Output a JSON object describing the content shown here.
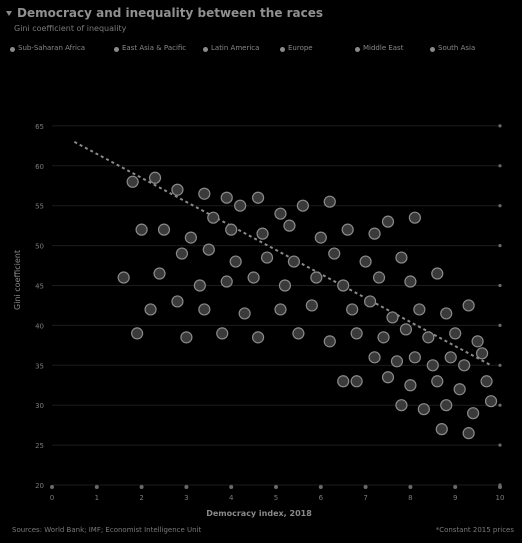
{
  "title": "Democracy and inequality between the races",
  "subtitle": "Gini coefficient of inequality",
  "legend": [
    "Sub-Saharan Africa",
    "East Asia & Pacific",
    "Latin America",
    "Europe",
    "Middle East",
    "South Asia"
  ],
  "footer": {
    "source": "Sources: World Bank; IMF; Economist Intelligence Unit",
    "note": "*Constant 2015 prices"
  },
  "chart_data": {
    "type": "scatter",
    "title": "Democracy and inequality between the races",
    "xlabel": "Democracy index, 2018",
    "ylabel": "Gini coefficient",
    "xlim": [
      0,
      10
    ],
    "ylim": [
      20,
      70
    ],
    "x_ticks": [
      "0",
      "1",
      "2",
      "3",
      "4",
      "5",
      "6",
      "7",
      "8",
      "9",
      "10"
    ],
    "y_ticks": [
      "20",
      "25",
      "30",
      "35",
      "40",
      "45",
      "50",
      "55",
      "60",
      "65"
    ],
    "trend": {
      "x": [
        0.5,
        9.8
      ],
      "y": [
        63,
        35
      ]
    },
    "points": [
      {
        "x": 1.8,
        "y": 58
      },
      {
        "x": 2.3,
        "y": 58.5
      },
      {
        "x": 2.8,
        "y": 57
      },
      {
        "x": 3.4,
        "y": 56.5
      },
      {
        "x": 3.9,
        "y": 56
      },
      {
        "x": 4.2,
        "y": 55
      },
      {
        "x": 4.6,
        "y": 56
      },
      {
        "x": 5.1,
        "y": 54
      },
      {
        "x": 5.6,
        "y": 55
      },
      {
        "x": 6.2,
        "y": 55.5
      },
      {
        "x": 3.6,
        "y": 53.5
      },
      {
        "x": 2.0,
        "y": 52
      },
      {
        "x": 2.5,
        "y": 52
      },
      {
        "x": 3.1,
        "y": 51
      },
      {
        "x": 4.0,
        "y": 52
      },
      {
        "x": 4.7,
        "y": 51.5
      },
      {
        "x": 5.3,
        "y": 52.5
      },
      {
        "x": 6.0,
        "y": 51
      },
      {
        "x": 6.6,
        "y": 52
      },
      {
        "x": 7.2,
        "y": 51.5
      },
      {
        "x": 7.5,
        "y": 53
      },
      {
        "x": 8.1,
        "y": 53.5
      },
      {
        "x": 2.9,
        "y": 49
      },
      {
        "x": 3.5,
        "y": 49.5
      },
      {
        "x": 4.1,
        "y": 48
      },
      {
        "x": 4.8,
        "y": 48.5
      },
      {
        "x": 5.4,
        "y": 48
      },
      {
        "x": 6.3,
        "y": 49
      },
      {
        "x": 7.0,
        "y": 48
      },
      {
        "x": 7.8,
        "y": 48.5
      },
      {
        "x": 1.6,
        "y": 46
      },
      {
        "x": 2.4,
        "y": 46.5
      },
      {
        "x": 3.3,
        "y": 45
      },
      {
        "x": 3.9,
        "y": 45.5
      },
      {
        "x": 4.5,
        "y": 46
      },
      {
        "x": 5.2,
        "y": 45
      },
      {
        "x": 5.9,
        "y": 46
      },
      {
        "x": 6.5,
        "y": 45
      },
      {
        "x": 7.3,
        "y": 46
      },
      {
        "x": 8.0,
        "y": 45.5
      },
      {
        "x": 8.6,
        "y": 46.5
      },
      {
        "x": 2.2,
        "y": 42
      },
      {
        "x": 2.8,
        "y": 43
      },
      {
        "x": 3.4,
        "y": 42
      },
      {
        "x": 4.3,
        "y": 41.5
      },
      {
        "x": 5.1,
        "y": 42
      },
      {
        "x": 5.8,
        "y": 42.5
      },
      {
        "x": 6.7,
        "y": 42
      },
      {
        "x": 7.1,
        "y": 43
      },
      {
        "x": 7.6,
        "y": 41
      },
      {
        "x": 8.2,
        "y": 42
      },
      {
        "x": 8.8,
        "y": 41.5
      },
      {
        "x": 9.3,
        "y": 42.5
      },
      {
        "x": 1.9,
        "y": 39
      },
      {
        "x": 3.0,
        "y": 38.5
      },
      {
        "x": 3.8,
        "y": 39
      },
      {
        "x": 4.6,
        "y": 38.5
      },
      {
        "x": 5.5,
        "y": 39
      },
      {
        "x": 6.2,
        "y": 38
      },
      {
        "x": 6.8,
        "y": 39
      },
      {
        "x": 7.4,
        "y": 38.5
      },
      {
        "x": 7.9,
        "y": 39.5
      },
      {
        "x": 8.4,
        "y": 38.5
      },
      {
        "x": 9.0,
        "y": 39
      },
      {
        "x": 9.5,
        "y": 38
      },
      {
        "x": 7.2,
        "y": 36
      },
      {
        "x": 7.7,
        "y": 35.5
      },
      {
        "x": 8.1,
        "y": 36
      },
      {
        "x": 8.5,
        "y": 35
      },
      {
        "x": 8.9,
        "y": 36
      },
      {
        "x": 9.2,
        "y": 35
      },
      {
        "x": 9.6,
        "y": 36.5
      },
      {
        "x": 6.8,
        "y": 33
      },
      {
        "x": 7.5,
        "y": 33.5
      },
      {
        "x": 8.0,
        "y": 32.5
      },
      {
        "x": 8.6,
        "y": 33
      },
      {
        "x": 9.1,
        "y": 32
      },
      {
        "x": 9.7,
        "y": 33
      },
      {
        "x": 7.8,
        "y": 30
      },
      {
        "x": 8.3,
        "y": 29.5
      },
      {
        "x": 8.8,
        "y": 30
      },
      {
        "x": 9.4,
        "y": 29
      },
      {
        "x": 9.8,
        "y": 30.5
      },
      {
        "x": 8.7,
        "y": 27
      },
      {
        "x": 9.3,
        "y": 26.5
      },
      {
        "x": 6.5,
        "y": 33
      }
    ]
  }
}
